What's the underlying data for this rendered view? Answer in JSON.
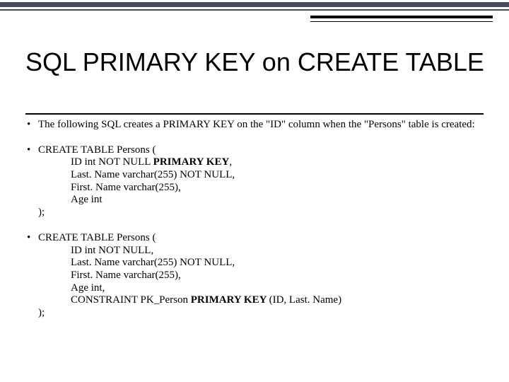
{
  "colors": {
    "band_dark": "#454b57",
    "band_thin": "#454b57",
    "rule": "#000000",
    "text": "#000000",
    "background": "#ffffff"
  },
  "title": "SQL PRIMARY KEY on CREATE TABLE",
  "bullet1": "The following SQL creates a PRIMARY KEY on the \"ID\" column when the \"Persons\" table is created:",
  "code1": {
    "open": "CREATE TABLE Persons (",
    "l1a": "    ID int NOT NULL ",
    "l1b": "PRIMARY KEY",
    "l1c": ",",
    "l2": "    Last. Name varchar(255) NOT NULL,",
    "l3": "    First. Name varchar(255),",
    "l4": "    Age int",
    "close": ");"
  },
  "code2": {
    "open": "CREATE TABLE Persons (",
    "l1": "    ID int NOT NULL,",
    "l2": "    Last. Name varchar(255) NOT NULL,",
    "l3": "    First. Name varchar(255),",
    "l4": "    Age int,",
    "l5a": "    CONSTRAINT PK_Person ",
    "l5b": "PRIMARY KEY ",
    "l5c": "(ID, Last. Name)",
    "close": ");"
  }
}
